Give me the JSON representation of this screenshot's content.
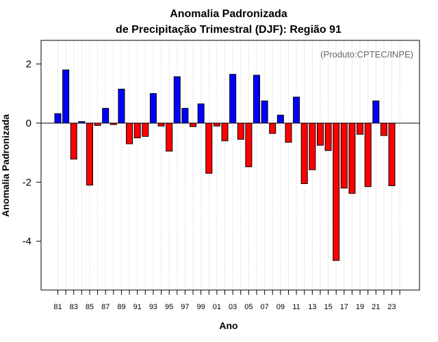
{
  "chart_data": {
    "type": "bar",
    "title_line1": "Anomalia Padronizada",
    "title_line2": "de Precipitação Trimestral (DJF): Região 91",
    "xlabel": "Ano",
    "ylabel": "Anomalia Padronizada",
    "credit": "(Produto:CPTEC/INPE)",
    "ylim": [
      -5.65,
      2.8
    ],
    "yticks": [
      2,
      0,
      -2,
      -4
    ],
    "ytick_labels": [
      "2",
      "0",
      "-2",
      "-4"
    ],
    "xtick_labels": [
      "81",
      "83",
      "85",
      "87",
      "89",
      "91",
      "93",
      "95",
      "97",
      "99",
      "01",
      "03",
      "05",
      "07",
      "09",
      "11",
      "13",
      "15",
      "17",
      "19",
      "21",
      "23"
    ],
    "categories": [
      "81",
      "82",
      "83",
      "84",
      "85",
      "86",
      "87",
      "88",
      "89",
      "90",
      "91",
      "92",
      "93",
      "94",
      "95",
      "96",
      "97",
      "98",
      "99",
      "00",
      "01",
      "02",
      "03",
      "04",
      "05",
      "06",
      "07",
      "08",
      "09",
      "10",
      "11",
      "12",
      "13",
      "14",
      "15",
      "16",
      "17",
      "18",
      "19",
      "20",
      "21",
      "22",
      "23",
      "24"
    ],
    "values": [
      0.32,
      1.8,
      -1.22,
      0.05,
      -2.1,
      -0.08,
      0.5,
      -0.05,
      1.15,
      -0.7,
      -0.5,
      -0.45,
      1.0,
      -0.1,
      -0.95,
      1.57,
      0.5,
      -0.12,
      0.65,
      -1.7,
      -0.1,
      -0.6,
      1.65,
      -0.55,
      -1.48,
      1.62,
      0.75,
      -0.35,
      0.27,
      -0.65,
      0.88,
      -2.05,
      -1.58,
      -0.75,
      -0.93,
      -4.65,
      -2.2,
      -2.38,
      -0.38,
      -2.15,
      0.75,
      -0.42,
      -2.12,
      null
    ],
    "colors": {
      "positive": "#0000ff",
      "negative": "#ff0000",
      "grid": "#d9d9d9"
    }
  }
}
